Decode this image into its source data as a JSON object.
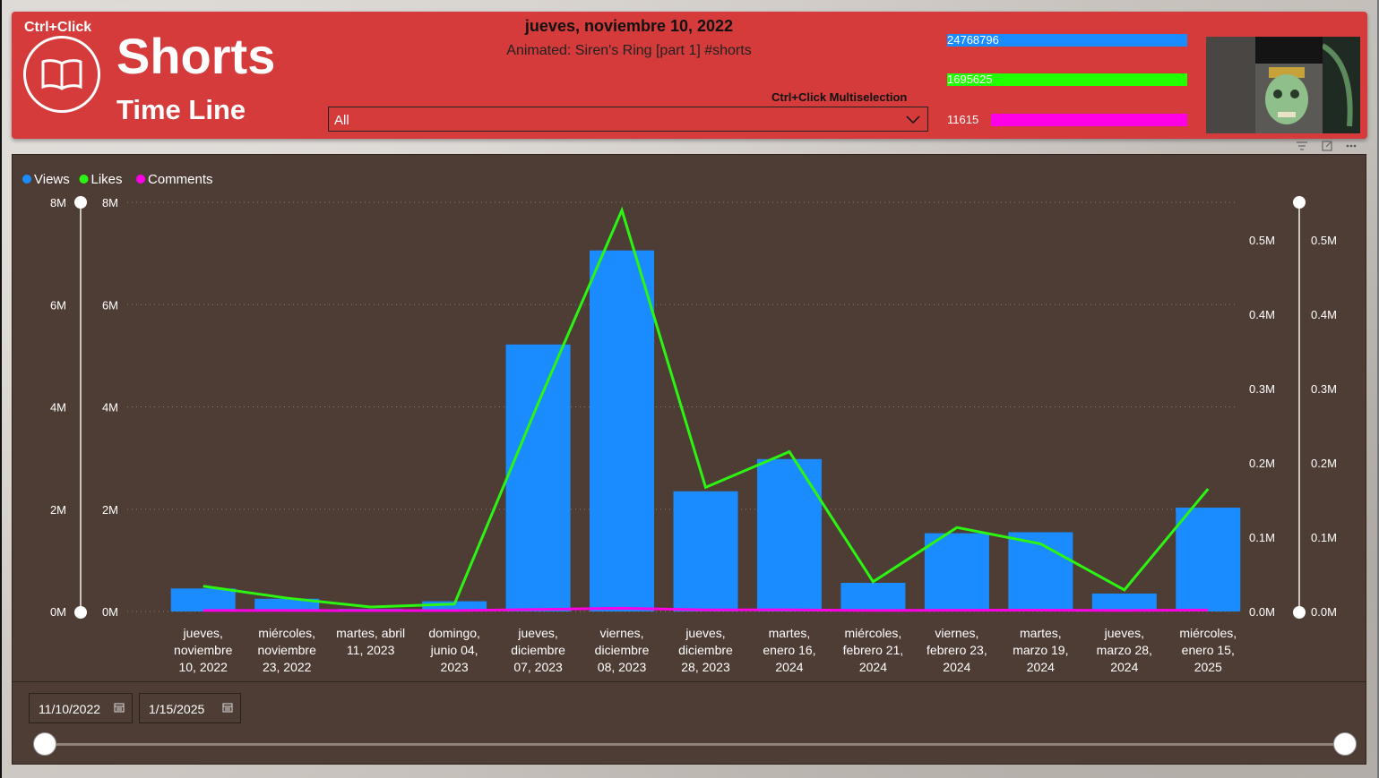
{
  "header": {
    "ctrl_click": "Ctrl+Click",
    "title": "Shorts",
    "subtitle": "Time Line",
    "selected_date": "jueves, noviembre 10, 2022",
    "selected_video": "Animated: Siren's Ring [part 1] #shorts",
    "multiselect_label": "Ctrl+Click Multiselection",
    "slicer_value": "All"
  },
  "kpis": [
    {
      "value": "24768796",
      "color": "#1a8cff"
    },
    {
      "value": "1695625",
      "color": "#22ff00"
    },
    {
      "value": "11615",
      "color": "#ff00e6"
    }
  ],
  "colors": {
    "views": "#1a8cff",
    "likes": "#2cf512",
    "comments": "#ff00e6",
    "header": "#d43b3a",
    "panel": "#4d3d35"
  },
  "chart_data": {
    "type": "bar",
    "legend": [
      "Views",
      "Likes",
      "Comments"
    ],
    "legend_position": "top-left",
    "categories": [
      [
        "jueves,",
        "noviembre",
        "10, 2022"
      ],
      [
        "miércoles,",
        "noviembre",
        "23, 2022"
      ],
      [
        "martes, abril",
        "11, 2023"
      ],
      [
        "domingo,",
        "junio 04,",
        "2023"
      ],
      [
        "jueves,",
        "diciembre",
        "07, 2023"
      ],
      [
        "viernes,",
        "diciembre",
        "08, 2023"
      ],
      [
        "jueves,",
        "diciembre",
        "28, 2023"
      ],
      [
        "martes,",
        "enero 16,",
        "2024"
      ],
      [
        "miércoles,",
        "febrero 21,",
        "2024"
      ],
      [
        "viernes,",
        "febrero 23,",
        "2024"
      ],
      [
        "martes,",
        "marzo 19,",
        "2024"
      ],
      [
        "jueves,",
        "marzo 28,",
        "2024"
      ],
      [
        "miércoles,",
        "enero 15,",
        "2025"
      ]
    ],
    "series": [
      {
        "name": "Views",
        "axis": "left",
        "type": "bar",
        "values": [
          450000,
          250000,
          50000,
          200000,
          5220000,
          7060000,
          2350000,
          2980000,
          560000,
          1530000,
          1550000,
          350000,
          2030000
        ]
      },
      {
        "name": "Likes",
        "axis": "right",
        "type": "line",
        "values": [
          34000,
          18000,
          6000,
          10000,
          280000,
          540000,
          167000,
          215000,
          40000,
          113000,
          91000,
          29000,
          165000
        ]
      },
      {
        "name": "Comments",
        "axis": "right",
        "type": "line",
        "values": [
          100,
          80,
          30,
          60,
          1500,
          3200,
          900,
          1000,
          200,
          500,
          600,
          150,
          700
        ]
      }
    ],
    "y_left": {
      "ticks": [
        "0M",
        "2M",
        "4M",
        "6M",
        "8M"
      ],
      "range": [
        0,
        8000000
      ]
    },
    "y_right": {
      "ticks": [
        "0.0M",
        "0.1M",
        "0.2M",
        "0.3M",
        "0.4M",
        "0.5M"
      ],
      "range": [
        0,
        550000
      ]
    },
    "grid": true
  },
  "date_range": {
    "start": "11/10/2022",
    "end": "1/15/2025"
  }
}
